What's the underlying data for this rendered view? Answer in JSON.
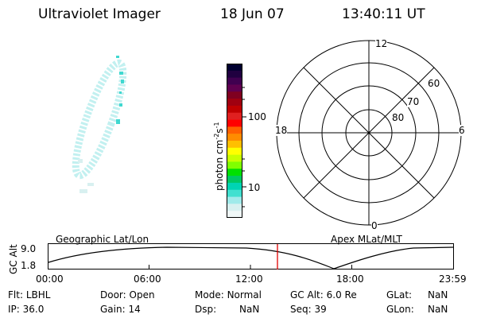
{
  "header": {
    "title": "Ultraviolet Imager",
    "date": "18 Jun 07",
    "time": "13:40:11 UT"
  },
  "colorbar": {
    "axis_label": "photon cm",
    "exp1": "-2",
    "unit2": "s",
    "exp2": "-1",
    "ticks": [
      "100",
      "10"
    ],
    "colors": [
      "#000030",
      "#200040",
      "#400050",
      "#600050",
      "#800020",
      "#a00010",
      "#c00000",
      "#e02020",
      "#ff0000",
      "#ff6000",
      "#ff8c00",
      "#ffbf00",
      "#ffff00",
      "#c8ff00",
      "#80ff00",
      "#00e000",
      "#00c864",
      "#00d4b4",
      "#40e0d0",
      "#a0eaea",
      "#d8f0f0",
      "#f0f8f8"
    ]
  },
  "polar_grid": {
    "labels": {
      "top": "12",
      "left": "18",
      "right": "6",
      "bottom": "0"
    },
    "lat_labels": [
      "60",
      "70",
      "80"
    ]
  },
  "strip": {
    "y_title": "GC Alt",
    "y_ticks": [
      "9.0",
      "1.8"
    ],
    "left_label": "Geographic Lat/Lon",
    "right_label": "Apex MLat/MLT",
    "x_ticks": [
      "00:00",
      "06:00",
      "12:00",
      "18:00",
      "23:59"
    ]
  },
  "info": {
    "row1": [
      {
        "label": "Flt:",
        "value": "LBHL"
      },
      {
        "label": "Door:",
        "value": "Open"
      },
      {
        "label": "Mode:",
        "value": "Normal"
      },
      {
        "label": "GC Alt:",
        "value": "6.0 Re"
      },
      {
        "label": "GLat:",
        "value": "NaN"
      }
    ],
    "row2": [
      {
        "label": "IP:",
        "value": "36.0"
      },
      {
        "label": "Gain:",
        "value": "14"
      },
      {
        "label": "Dsp:",
        "value": "NaN"
      },
      {
        "label": "Seq:",
        "value": "39"
      },
      {
        "label": "GLon:",
        "value": "NaN"
      }
    ]
  }
}
